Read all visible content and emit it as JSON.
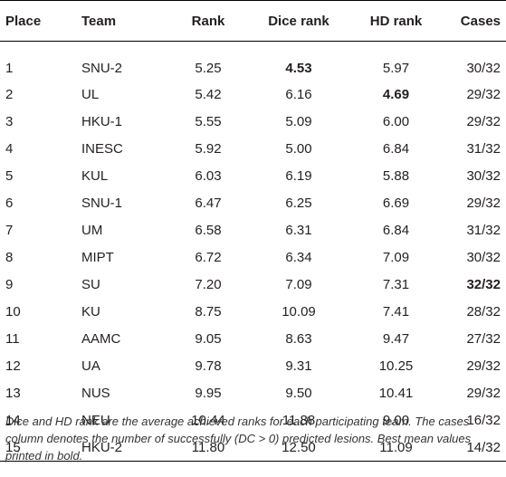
{
  "table": {
    "headers": [
      "Place",
      "Team",
      "Rank",
      "Dice rank",
      "HD rank",
      "Cases"
    ],
    "rows": [
      {
        "place": "1",
        "team": "SNU-2",
        "rank": "5.25",
        "dice": "4.53",
        "hd": "5.97",
        "cases": "30/32",
        "bold": [
          "dice"
        ]
      },
      {
        "place": "2",
        "team": "UL",
        "rank": "5.42",
        "dice": "6.16",
        "hd": "4.69",
        "cases": "29/32",
        "bold": [
          "hd"
        ]
      },
      {
        "place": "3",
        "team": "HKU-1",
        "rank": "5.55",
        "dice": "5.09",
        "hd": "6.00",
        "cases": "29/32",
        "bold": []
      },
      {
        "place": "4",
        "team": "INESC",
        "rank": "5.92",
        "dice": "5.00",
        "hd": "6.84",
        "cases": "31/32",
        "bold": []
      },
      {
        "place": "5",
        "team": "KUL",
        "rank": "6.03",
        "dice": "6.19",
        "hd": "5.88",
        "cases": "30/32",
        "bold": []
      },
      {
        "place": "6",
        "team": "SNU-1",
        "rank": "6.47",
        "dice": "6.25",
        "hd": "6.69",
        "cases": "29/32",
        "bold": []
      },
      {
        "place": "7",
        "team": "UM",
        "rank": "6.58",
        "dice": "6.31",
        "hd": "6.84",
        "cases": "31/32",
        "bold": []
      },
      {
        "place": "8",
        "team": "MIPT",
        "rank": "6.72",
        "dice": "6.34",
        "hd": "7.09",
        "cases": "30/32",
        "bold": []
      },
      {
        "place": "9",
        "team": "SU",
        "rank": "7.20",
        "dice": "7.09",
        "hd": "7.31",
        "cases": "32/32",
        "bold": [
          "cases"
        ]
      },
      {
        "place": "10",
        "team": "KU",
        "rank": "8.75",
        "dice": "10.09",
        "hd": "7.41",
        "cases": "28/32",
        "bold": []
      },
      {
        "place": "11",
        "team": "AAMC",
        "rank": "9.05",
        "dice": "8.63",
        "hd": "9.47",
        "cases": "27/32",
        "bold": []
      },
      {
        "place": "12",
        "team": "UA",
        "rank": "9.78",
        "dice": "9.31",
        "hd": "10.25",
        "cases": "29/32",
        "bold": []
      },
      {
        "place": "13",
        "team": "NUS",
        "rank": "9.95",
        "dice": "9.50",
        "hd": "10.41",
        "cases": "29/32",
        "bold": []
      },
      {
        "place": "14",
        "team": "NEU",
        "rank": "10.44",
        "dice": "11.88",
        "hd": "9.00",
        "cases": "16/32",
        "bold": []
      },
      {
        "place": "15",
        "team": "HKU-2",
        "rank": "11.80",
        "dice": "12.50",
        "hd": "11.09",
        "cases": "14/32",
        "bold": []
      }
    ]
  },
  "caption": "Dice and HD rank are the average achieved ranks for each participating team. The cases column denotes the number of successfully (DC > 0) predicted lesions. Best mean values printed in bold."
}
